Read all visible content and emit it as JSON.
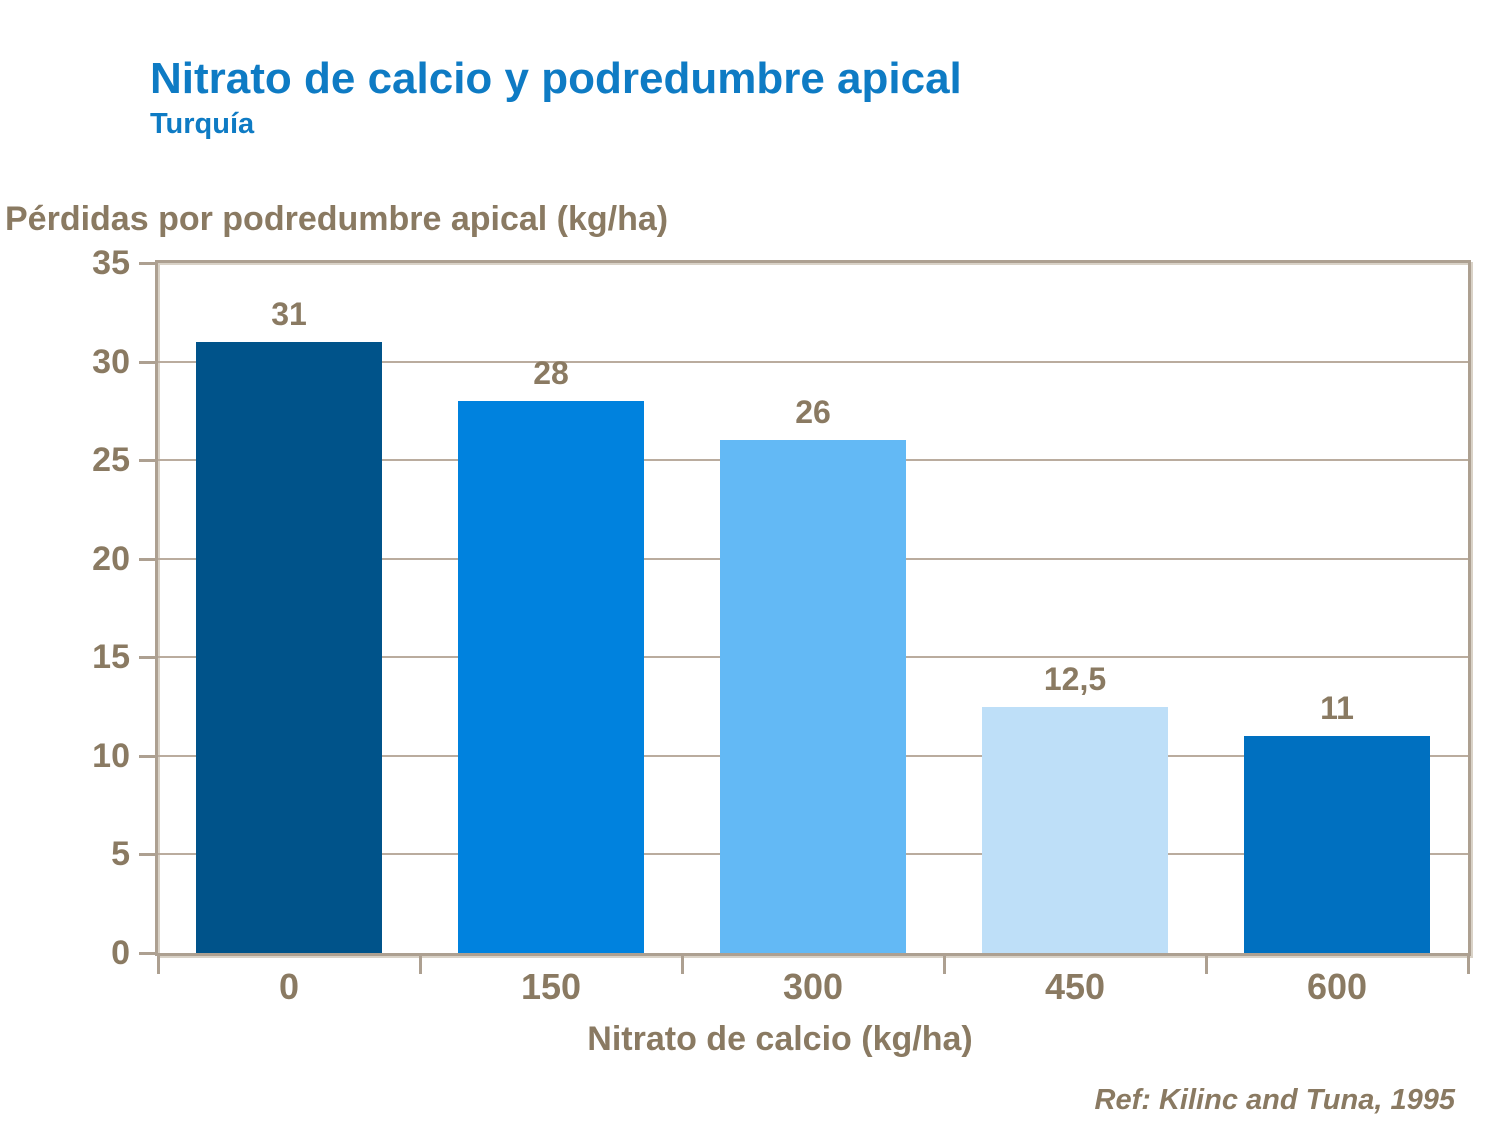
{
  "header": {
    "title": "Nitrato de calcio y podredumbre apical",
    "subtitle": "Turquía"
  },
  "footer": {
    "reference": "Ref: Kilinc and Tuna, 1995"
  },
  "colors": {
    "title_blue": "#0E7BC4",
    "axis_text_tan": "#8A7A62",
    "gridline": "#BAAC9E",
    "plot_border": "#ADA091"
  },
  "chart_data": {
    "type": "bar",
    "title": "Nitrato de calcio y podredumbre apical",
    "subtitle": "Turquía",
    "categories": [
      "0",
      "150",
      "300",
      "450",
      "600"
    ],
    "values": [
      31,
      28,
      26,
      12.5,
      11
    ],
    "value_labels": [
      "31",
      "28",
      "26",
      "12,5",
      "11"
    ],
    "bar_colors": [
      "#00538A",
      "#0082DE",
      "#63B9F5",
      "#BEDFF8",
      "#0070C0"
    ],
    "xlabel": "Nitrato de calcio (kg/ha)",
    "ylabel": "Pérdidas por podredumbre apical (kg/ha)",
    "ylim": [
      0,
      35
    ],
    "yticks": [
      0,
      5,
      10,
      15,
      20,
      25,
      30,
      35
    ],
    "grid": "horizontal",
    "legend": "none"
  }
}
